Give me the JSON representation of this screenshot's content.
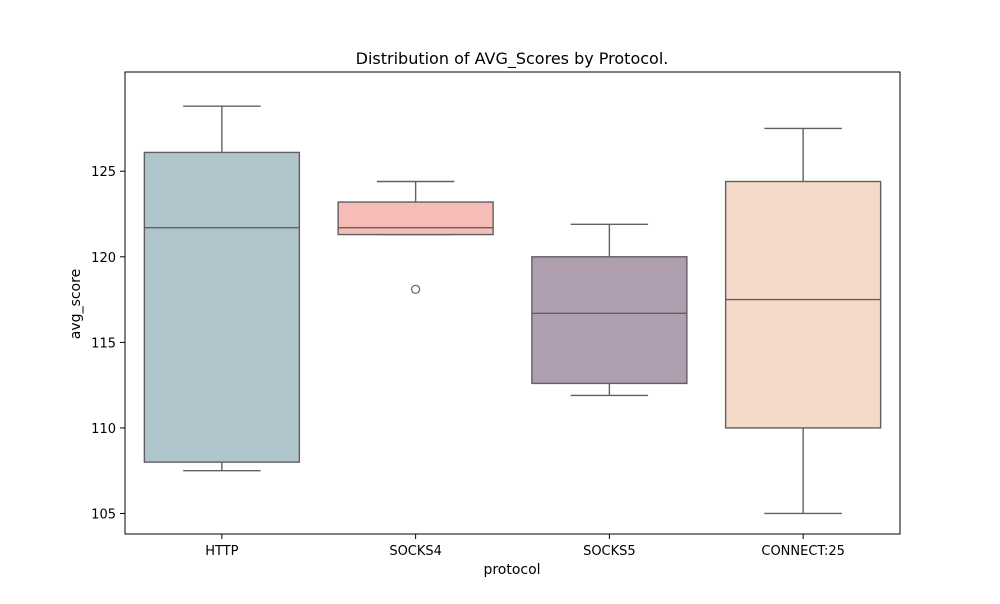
{
  "chart_data": {
    "type": "box",
    "title": "Distribution of AVG_Scores by Protocol.",
    "xlabel": "protocol",
    "ylabel": "avg_score",
    "ylim": [
      103.8,
      130.8
    ],
    "yticks": [
      105,
      110,
      115,
      120,
      125
    ],
    "grid": false,
    "legend": "none",
    "categories": [
      "HTTP",
      "SOCKS4",
      "SOCKS5",
      "CONNECT:25"
    ],
    "boxes": [
      {
        "category": "HTTP",
        "whisker_low": 107.5,
        "q1": 108.0,
        "median": 121.7,
        "q3": 126.1,
        "whisker_high": 128.8,
        "outliers": [],
        "color": "#b0c4cb"
      },
      {
        "category": "SOCKS4",
        "whisker_low": 121.3,
        "q1": 121.3,
        "median": 121.7,
        "q3": 123.2,
        "whisker_high": 124.4,
        "outliers": [
          118.1
        ],
        "color": "#f5bcb8"
      },
      {
        "category": "SOCKS5",
        "whisker_low": 111.9,
        "q1": 112.6,
        "median": 116.7,
        "q3": 120.0,
        "whisker_high": 121.9,
        "outliers": [],
        "color": "#b09fb1"
      },
      {
        "category": "CONNECT:25",
        "whisker_low": 105.0,
        "q1": 110.0,
        "median": 117.5,
        "q3": 124.4,
        "whisker_high": 127.5,
        "outliers": [],
        "color": "#f5dac9"
      }
    ],
    "line_color": "#606060"
  }
}
